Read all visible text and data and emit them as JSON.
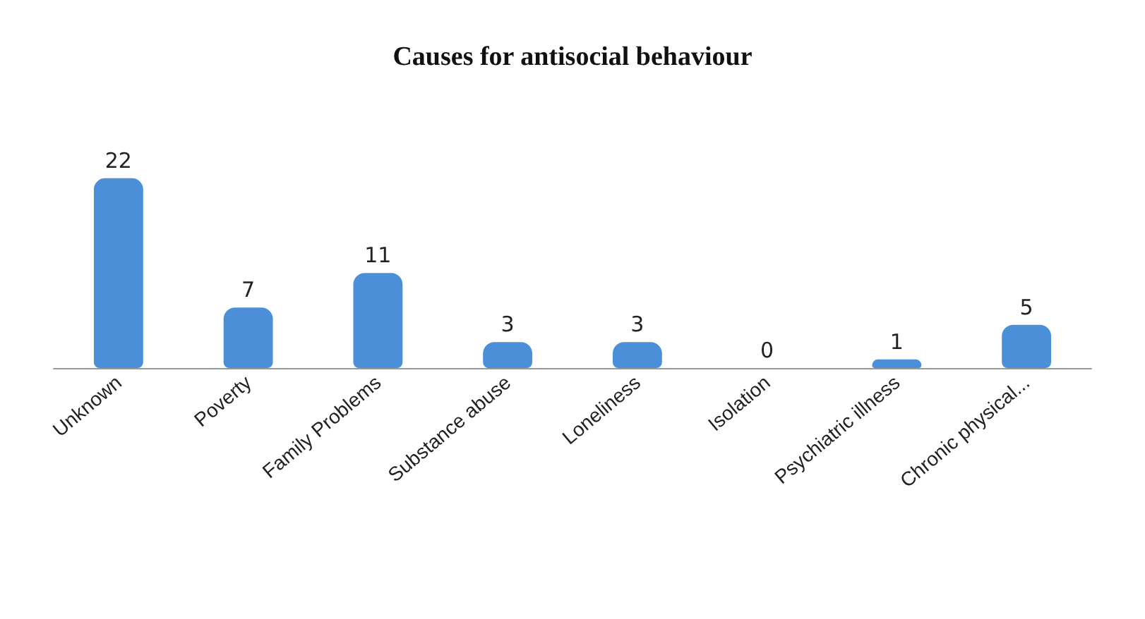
{
  "chart_data": {
    "type": "bar",
    "title": "Causes for antisocial behaviour",
    "categories": [
      "Unknown",
      "Poverty",
      "Family Problems",
      "Substance abuse",
      "Loneliness",
      "Isolation",
      "Psychiatric illness",
      "Chronic physical..."
    ],
    "values": [
      22,
      7,
      11,
      3,
      3,
      0,
      1,
      5
    ],
    "color": "#4a8fd8",
    "data_labels": true
  }
}
